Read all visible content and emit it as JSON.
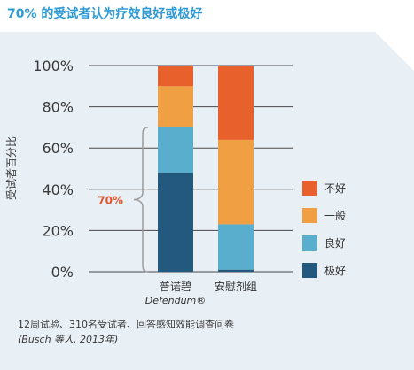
{
  "header": {
    "title": "70% 的受试者认为疗效良好或极好"
  },
  "chart_data": {
    "type": "bar",
    "stacked": true,
    "percent": true,
    "categories": [
      {
        "name": "普诺碧",
        "sub": "Defendum®"
      },
      {
        "name": "安慰剂组",
        "sub": ""
      }
    ],
    "series": [
      {
        "name": "极好",
        "color": "#23587f",
        "values": [
          48,
          1
        ]
      },
      {
        "name": "良好",
        "color": "#59aece",
        "values": [
          22,
          22
        ]
      },
      {
        "name": "一般",
        "color": "#f0a043",
        "values": [
          20,
          41
        ]
      },
      {
        "name": "不好",
        "color": "#e8602c",
        "values": [
          10,
          36
        ]
      }
    ],
    "ylabel": "受试者百分比",
    "ylim": [
      0,
      100
    ],
    "yticks": [
      "0%",
      "20%",
      "40%",
      "60%",
      "80%",
      "100%"
    ],
    "grid": true,
    "legend_position": "right",
    "annotation": {
      "text": "70%",
      "color": "#e8542b"
    }
  },
  "source": {
    "line1": "12周试验、310名受试者、回答感知效能调查问卷",
    "line2": "(Busch 等人, 2013年)"
  }
}
